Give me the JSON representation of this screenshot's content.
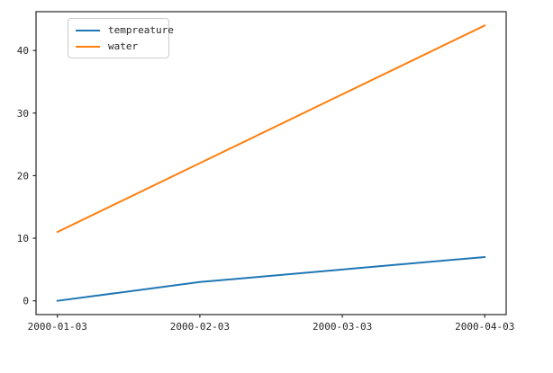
{
  "figure": {
    "background": "#ffffff",
    "axis_color": "#262626",
    "tick_label_color": "#262626"
  },
  "chart_data": {
    "type": "line",
    "title": "",
    "xlabel": "",
    "ylabel": "",
    "grid": false,
    "legend_position": "upper left",
    "categories": [
      "2000-01-03",
      "2000-02-03",
      "2000-03-03",
      "2000-04-03"
    ],
    "series": [
      {
        "name": "tempreature",
        "color": "#1f77b4",
        "values": [
          0,
          3,
          5,
          7
        ]
      },
      {
        "name": "water",
        "color": "#ff7f0e",
        "values": [
          11,
          22,
          33,
          44
        ]
      }
    ],
    "yticks": [
      0,
      10,
      20,
      30,
      40
    ],
    "ylim": [
      -2.2,
      46.2
    ],
    "line_width": 2
  }
}
